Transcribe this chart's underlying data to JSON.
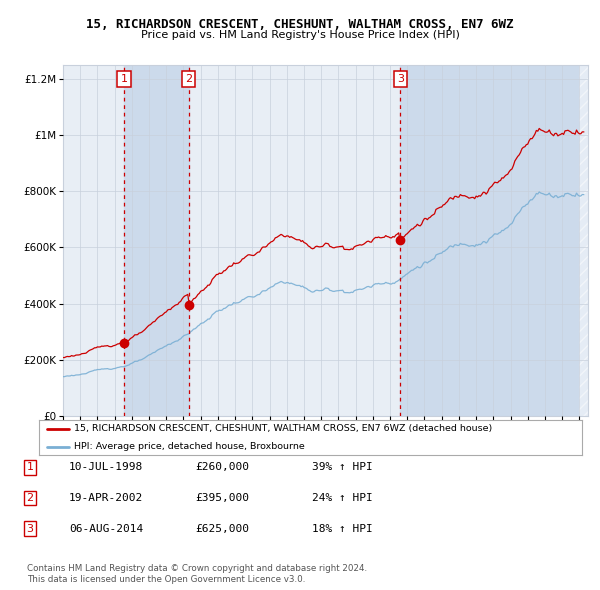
{
  "title": "15, RICHARDSON CRESCENT, CHESHUNT, WALTHAM CROSS, EN7 6WZ",
  "subtitle": "Price paid vs. HM Land Registry's House Price Index (HPI)",
  "legend_line1": "15, RICHARDSON CRESCENT, CHESHUNT, WALTHAM CROSS, EN7 6WZ (detached house)",
  "legend_line2": "HPI: Average price, detached house, Broxbourne",
  "sales": [
    {
      "num": 1,
      "date_label": "10-JUL-1998",
      "date_x": 1998.54,
      "price": 260000,
      "pct": "39%",
      "dir": "↑"
    },
    {
      "num": 2,
      "date_label": "19-APR-2002",
      "date_x": 2002.3,
      "price": 395000,
      "pct": "24%",
      "dir": "↑"
    },
    {
      "num": 3,
      "date_label": "06-AUG-2014",
      "date_x": 2014.6,
      "price": 625000,
      "pct": "18%",
      "dir": "↑"
    }
  ],
  "table_rows": [
    [
      "1",
      "10-JUL-1998",
      "£260,000",
      "39% ↑ HPI"
    ],
    [
      "2",
      "19-APR-2002",
      "£395,000",
      "24% ↑ HPI"
    ],
    [
      "3",
      "06-AUG-2014",
      "£625,000",
      "18% ↑ HPI"
    ]
  ],
  "footnote1": "Contains HM Land Registry data © Crown copyright and database right 2024.",
  "footnote2": "This data is licensed under the Open Government Licence v3.0.",
  "xmin": 1995.0,
  "xmax": 2025.5,
  "ymin": 0,
  "ymax": 1250000,
  "hpi_color": "#7aafd4",
  "sale_color": "#cc0000",
  "bg_color": "#ffffff",
  "plot_bg_color": "#e8eef5",
  "shade_color": "#ccdaeb",
  "hatch_color": "#cccccc",
  "grid_color": "#c8d0dc"
}
